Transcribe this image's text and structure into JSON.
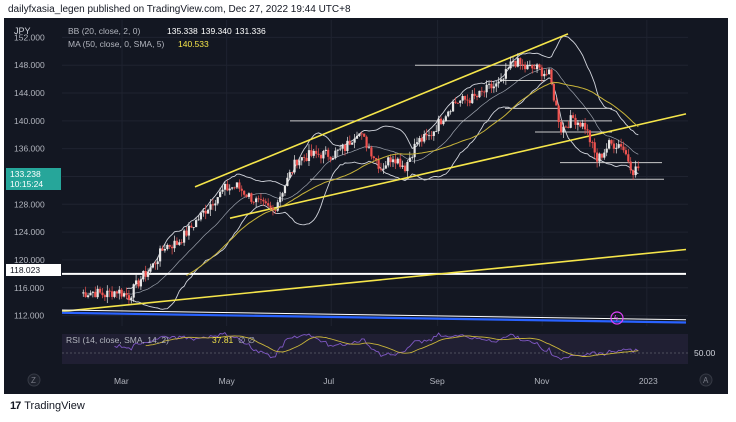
{
  "header": {
    "publisher_line": "dailyfxasia_legen published on TradingView.com, Dec 27, 2022 19:44 UTC+8"
  },
  "footer": {
    "logo_text": "TradingView",
    "logo_mark": "17"
  },
  "colors": {
    "background": "#131722",
    "grid": "#1f2330",
    "up_candle": "#e6e6e6",
    "down_candle": "#ef5350",
    "trend_yellow": "#f5e54a",
    "ma_yellow": "#c8b43a",
    "bb_white": "#d1d4dc",
    "support_white": "#ffffff",
    "blue_line": "#2962ff",
    "rsi_purple": "#7e57c2",
    "rsi_fill": "#2a2540",
    "price_badge": "#26a69a"
  },
  "chart_data": {
    "type": "candlestick",
    "symbol": "JPY",
    "legend": {
      "bb": {
        "label": "BB (20, close, 2, 0)",
        "values": [
          "135.338",
          "139.340",
          "131.336"
        ]
      },
      "ma": {
        "label": "MA (50, close, 0, SMA, 5)",
        "value": "140.533"
      }
    },
    "y_axis": {
      "ticks": [
        "152.000",
        "148.000",
        "144.000",
        "140.000",
        "136.000",
        "132.000",
        "128.000",
        "124.000",
        "120.000",
        "116.000",
        "112.000"
      ],
      "tick_values": [
        152,
        148,
        144,
        140,
        136,
        132,
        128,
        124,
        120,
        116,
        112
      ],
      "range": [
        110.5,
        154.5
      ]
    },
    "x_axis": {
      "labels": [
        "Mar",
        "May",
        "Jul",
        "Sep",
        "Nov",
        "2023"
      ],
      "label_dates": [
        "2022-03-01",
        "2022-05-01",
        "2022-07-01",
        "2022-09-01",
        "2022-11-01",
        "2023-01-01"
      ],
      "range": [
        "2022-01-25",
        "2023-01-25"
      ]
    },
    "price_badges": {
      "current_price": "133.238",
      "countdown": "10:15:24",
      "level_price": "118.023"
    },
    "weekly_closes": [
      [
        "2022-02-05",
        115.2
      ],
      [
        "2022-02-12",
        115.4
      ],
      [
        "2022-02-19",
        115.0
      ],
      [
        "2022-02-26",
        115.6
      ],
      [
        "2022-03-05",
        114.8
      ],
      [
        "2022-03-12",
        117.3
      ],
      [
        "2022-03-19",
        119.2
      ],
      [
        "2022-03-26",
        122.0
      ],
      [
        "2022-04-02",
        122.4
      ],
      [
        "2022-04-09",
        124.3
      ],
      [
        "2022-04-16",
        126.4
      ],
      [
        "2022-04-23",
        128.5
      ],
      [
        "2022-04-30",
        130.2
      ],
      [
        "2022-05-07",
        130.6
      ],
      [
        "2022-05-14",
        129.2
      ],
      [
        "2022-05-21",
        127.9
      ],
      [
        "2022-05-28",
        127.1
      ],
      [
        "2022-06-04",
        130.8
      ],
      [
        "2022-06-11",
        134.4
      ],
      [
        "2022-06-18",
        135.0
      ],
      [
        "2022-06-25",
        135.2
      ],
      [
        "2022-07-02",
        135.2
      ],
      [
        "2022-07-09",
        136.1
      ],
      [
        "2022-07-16",
        138.6
      ],
      [
        "2022-07-23",
        136.2
      ],
      [
        "2022-07-30",
        133.2
      ],
      [
        "2022-08-06",
        135.0
      ],
      [
        "2022-08-13",
        133.4
      ],
      [
        "2022-08-20",
        137.0
      ],
      [
        "2022-08-27",
        137.7
      ],
      [
        "2022-09-03",
        140.2
      ],
      [
        "2022-09-10",
        142.6
      ],
      [
        "2022-09-17",
        143.0
      ],
      [
        "2022-09-24",
        143.4
      ],
      [
        "2022-10-01",
        144.7
      ],
      [
        "2022-10-08",
        145.3
      ],
      [
        "2022-10-15",
        148.7
      ],
      [
        "2022-10-22",
        147.6
      ],
      [
        "2022-10-29",
        147.5
      ],
      [
        "2022-11-05",
        146.6
      ],
      [
        "2022-11-12",
        138.8
      ],
      [
        "2022-11-19",
        140.4
      ],
      [
        "2022-11-26",
        139.2
      ],
      [
        "2022-12-03",
        134.3
      ],
      [
        "2022-12-10",
        136.6
      ],
      [
        "2022-12-17",
        136.7
      ],
      [
        "2022-12-24",
        132.9
      ],
      [
        "2022-12-27",
        133.2
      ]
    ],
    "horizontal_levels": [
      148.0,
      145.8,
      141.8,
      140.0,
      138.4,
      134.0,
      131.6,
      118.0
    ],
    "rsi": {
      "label": "RSI (14, close, SMA, 14, 2)",
      "value": "37.81",
      "extra": "∅ ∅",
      "level_label": "50.00"
    }
  }
}
